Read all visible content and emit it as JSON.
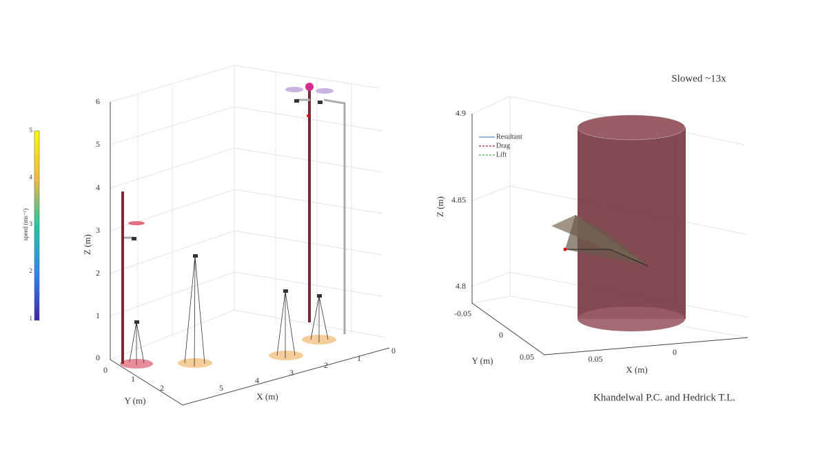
{
  "colorbar": {
    "label": "speed (ms⁻¹)",
    "ticks": [
      1,
      2,
      3,
      4,
      5
    ]
  },
  "left_plot": {
    "zlabel": "Z (m)",
    "xlabel": "X (m)",
    "ylabel": "Y (m)",
    "zticks": [
      0,
      1,
      2,
      3,
      4,
      5,
      6
    ],
    "xticks": [
      0,
      1,
      2,
      3,
      4,
      5
    ],
    "yticks": [
      0,
      1,
      2
    ]
  },
  "right_plot": {
    "title": "Slowed ~13x",
    "zlabel": "Z (m)",
    "xlabel": "X (m)",
    "ylabel": "Y (m)",
    "zticks": [
      4.9,
      4.85,
      4.8
    ],
    "yticks": [
      -0.05,
      0,
      0.05
    ],
    "xticks": [
      0.05,
      0
    ],
    "legend": [
      "Resultant",
      "Drag",
      "Lift"
    ]
  },
  "credit": "Khandelwal P.C. and Hedrick T.L."
}
